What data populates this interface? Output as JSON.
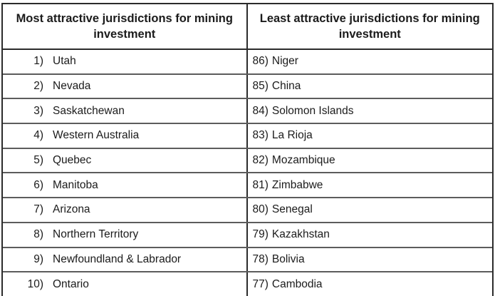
{
  "table": {
    "columns": {
      "left_header": "Most attractive jurisdictions for mining investment",
      "right_header": "Least attractive jurisdictions for mining investment"
    },
    "rows": [
      {
        "left": {
          "rank": "1)",
          "name": "Utah"
        },
        "right": {
          "rank": "86)",
          "name": "Niger"
        }
      },
      {
        "left": {
          "rank": "2)",
          "name": "Nevada"
        },
        "right": {
          "rank": "85)",
          "name": "China"
        }
      },
      {
        "left": {
          "rank": "3)",
          "name": "Saskatchewan"
        },
        "right": {
          "rank": "84)",
          "name": "Solomon Islands"
        }
      },
      {
        "left": {
          "rank": "4)",
          "name": "Western Australia"
        },
        "right": {
          "rank": "83)",
          "name": "La Rioja"
        }
      },
      {
        "left": {
          "rank": "5)",
          "name": "Quebec"
        },
        "right": {
          "rank": "82)",
          "name": "Mozambique"
        }
      },
      {
        "left": {
          "rank": "6)",
          "name": "Manitoba"
        },
        "right": {
          "rank": "81)",
          "name": "Zimbabwe"
        }
      },
      {
        "left": {
          "rank": "7)",
          "name": "Arizona"
        },
        "right": {
          "rank": "80)",
          "name": "Senegal"
        }
      },
      {
        "left": {
          "rank": "8)",
          "name": "Northern Territory"
        },
        "right": {
          "rank": "79)",
          "name": "Kazakhstan"
        }
      },
      {
        "left": {
          "rank": "9)",
          "name": "Newfoundland & Labrador"
        },
        "right": {
          "rank": "78)",
          "name": "Bolivia"
        }
      },
      {
        "left": {
          "rank": "10)",
          "name": "Ontario"
        },
        "right": {
          "rank": "77)",
          "name": "Cambodia"
        }
      }
    ],
    "colors": {
      "outer_border": "#2b2b2b",
      "row_divider": "#5c5c5c",
      "text": "#1b1b1b",
      "background": "#ffffff"
    }
  }
}
